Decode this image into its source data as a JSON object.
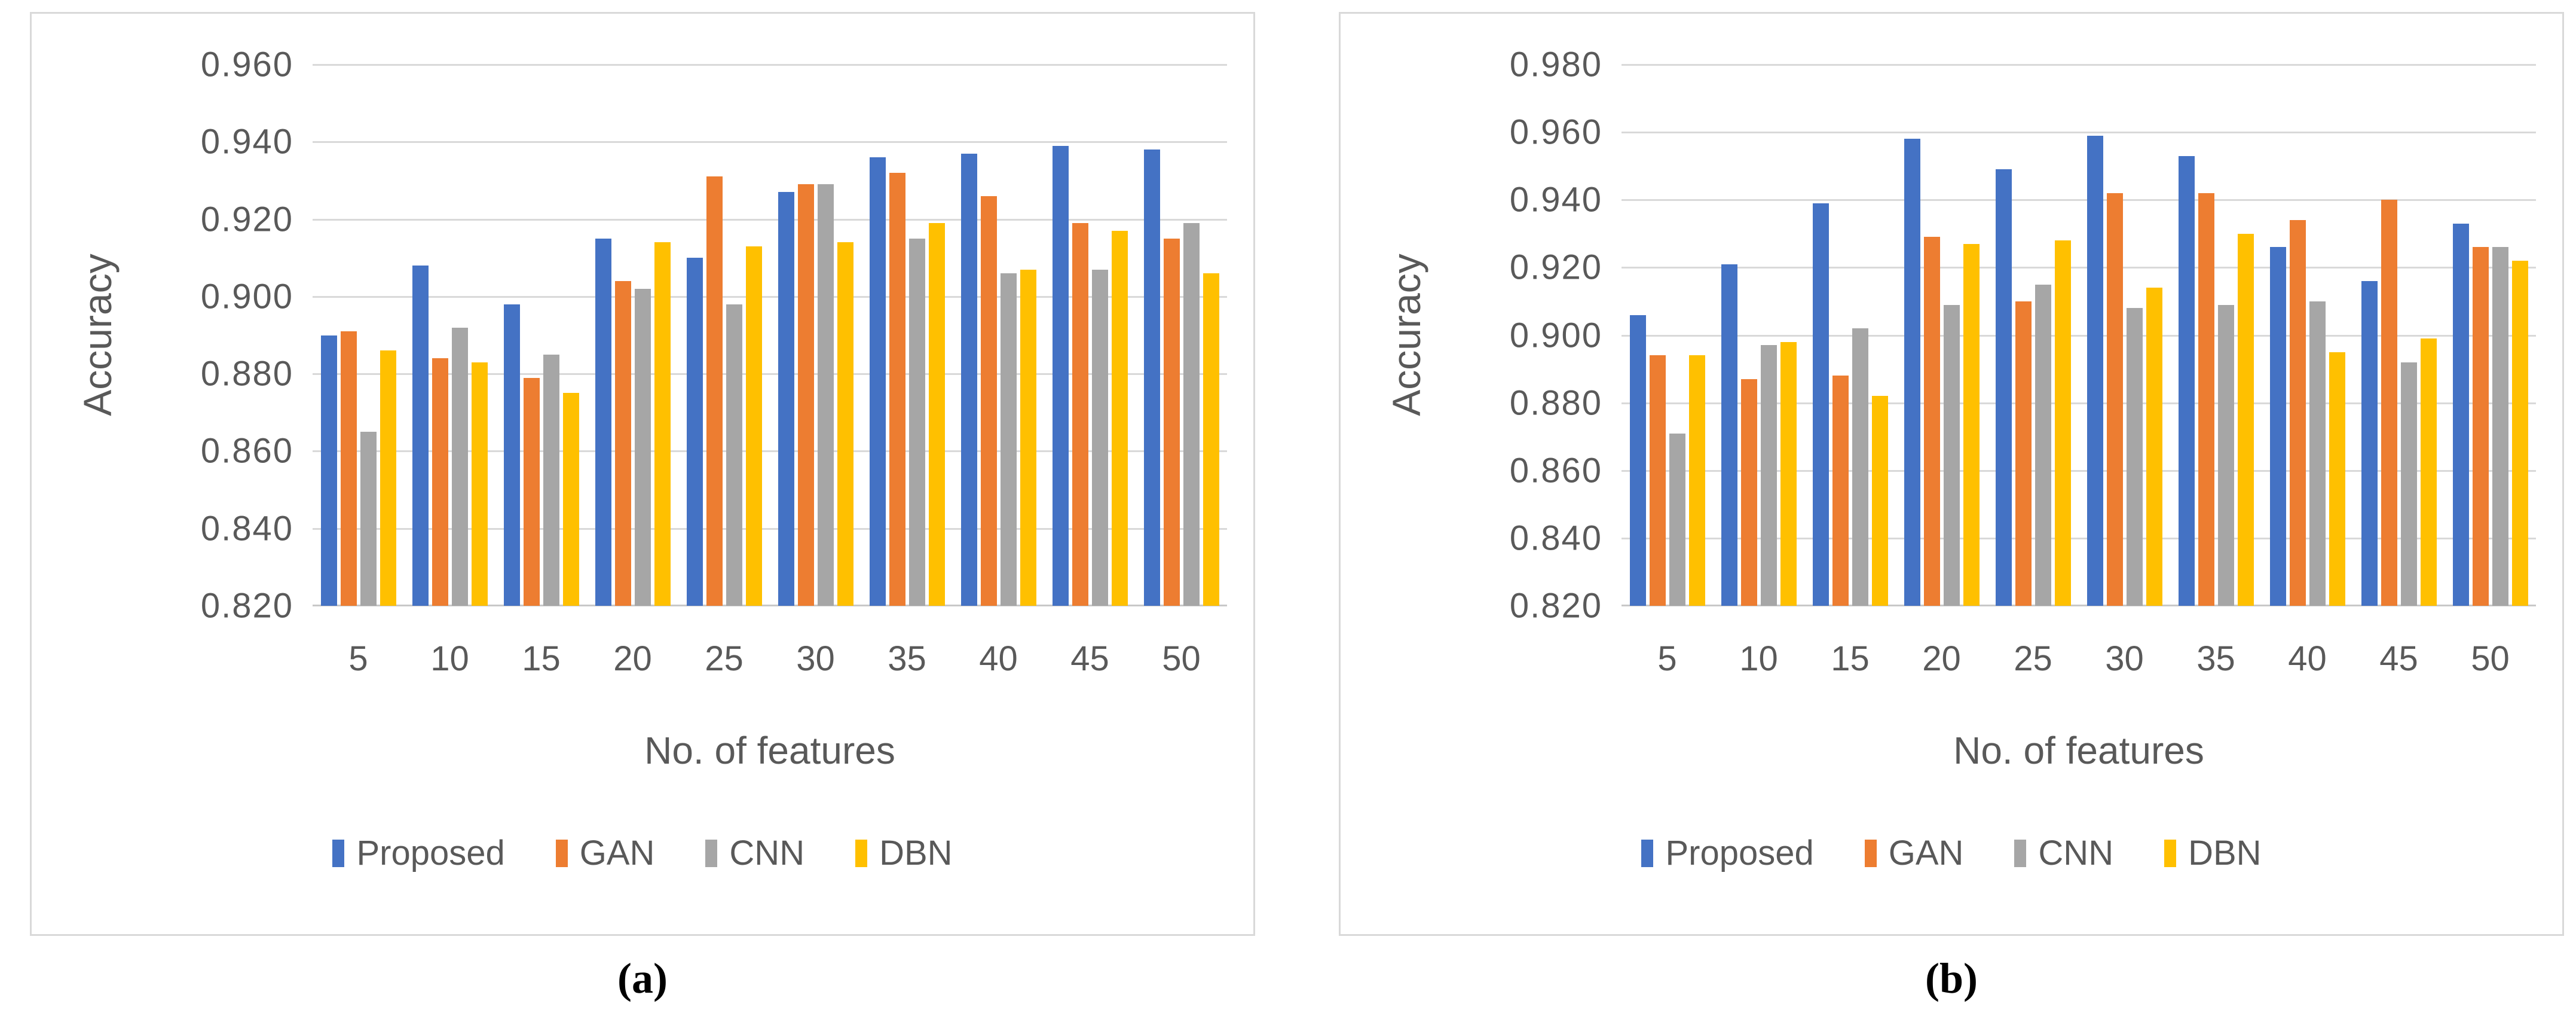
{
  "colors": {
    "proposed": "#4472C4",
    "gan": "#ED7D31",
    "cnn": "#A6A6A6",
    "dbn": "#FFC000",
    "gridline": "#D9D9D9",
    "axis_line": "#C8C8C8",
    "chart_text": "#595959",
    "frame_border": "#D9D9D9",
    "caption_text": "#000000"
  },
  "chart_data": [
    {
      "type": "bar",
      "title": "",
      "caption": "(a)",
      "xlabel": "No. of features",
      "ylabel": "Accuracy",
      "categories": [
        "5",
        "10",
        "15",
        "20",
        "25",
        "30",
        "35",
        "40",
        "45",
        "50"
      ],
      "ylim": [
        0.82,
        0.96
      ],
      "ytick_step": 0.02,
      "ytick_labels": [
        "0.960",
        "0.940",
        "0.920",
        "0.900",
        "0.880",
        "0.860",
        "0.840",
        "0.820"
      ],
      "grid": true,
      "legend_position": "bottom",
      "series": [
        {
          "name": "Proposed",
          "color_key": "proposed",
          "values": [
            0.89,
            0.908,
            0.898,
            0.915,
            0.91,
            0.927,
            0.936,
            0.937,
            0.939,
            0.938
          ]
        },
        {
          "name": "GAN",
          "color_key": "gan",
          "values": [
            0.891,
            0.884,
            0.879,
            0.904,
            0.931,
            0.929,
            0.932,
            0.926,
            0.919,
            0.915
          ]
        },
        {
          "name": "CNN",
          "color_key": "cnn",
          "values": [
            0.865,
            0.892,
            0.885,
            0.902,
            0.898,
            0.929,
            0.915,
            0.906,
            0.907,
            0.919
          ]
        },
        {
          "name": "DBN",
          "color_key": "dbn",
          "values": [
            0.886,
            0.883,
            0.875,
            0.914,
            0.913,
            0.914,
            0.919,
            0.907,
            0.917,
            0.906
          ]
        }
      ]
    },
    {
      "type": "bar",
      "title": "",
      "caption": "(b)",
      "xlabel": "No. of features",
      "ylabel": "Accuracy",
      "categories": [
        "5",
        "10",
        "15",
        "20",
        "25",
        "30",
        "35",
        "40",
        "45",
        "50"
      ],
      "ylim": [
        0.82,
        0.98
      ],
      "ytick_step": 0.02,
      "ytick_labels": [
        "0.980",
        "0.960",
        "0.940",
        "0.920",
        "0.900",
        "0.880",
        "0.860",
        "0.840",
        "0.820"
      ],
      "grid": true,
      "legend_position": "bottom",
      "series": [
        {
          "name": "Proposed",
          "color_key": "proposed",
          "values": [
            0.906,
            0.921,
            0.939,
            0.958,
            0.949,
            0.959,
            0.953,
            0.926,
            0.916,
            0.933
          ]
        },
        {
          "name": "GAN",
          "color_key": "gan",
          "values": [
            0.894,
            0.887,
            0.888,
            0.929,
            0.91,
            0.942,
            0.942,
            0.934,
            0.94,
            0.926
          ]
        },
        {
          "name": "CNN",
          "color_key": "cnn",
          "values": [
            0.871,
            0.897,
            0.902,
            0.909,
            0.915,
            0.908,
            0.909,
            0.91,
            0.892,
            0.926
          ]
        },
        {
          "name": "DBN",
          "color_key": "dbn",
          "values": [
            0.894,
            0.898,
            0.882,
            0.927,
            0.928,
            0.914,
            0.93,
            0.895,
            0.899,
            0.922
          ]
        }
      ]
    }
  ]
}
